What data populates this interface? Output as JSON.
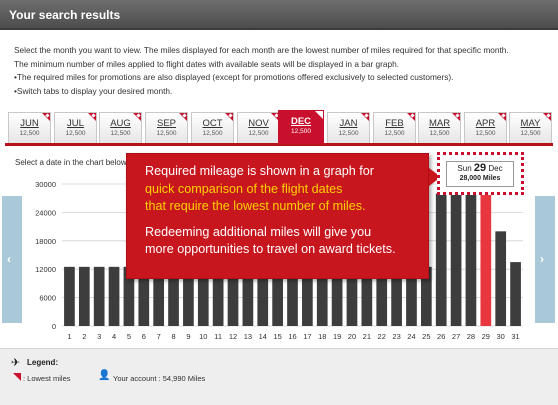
{
  "header": {
    "title": "Your search results"
  },
  "intro": {
    "lines": [
      "Select the month you want to view. The miles displayed for each month are the lowest number of miles required for that specific month.",
      "The minimum number of miles applied to flight dates with available seats will be displayed in a bar graph.",
      "•The required miles for promotions are also displayed (except for promotions offered exclusively to selected customers).",
      "•Switch tabs to display your desired month."
    ]
  },
  "tabs": [
    {
      "month": "JUN",
      "miles": "12,500",
      "active": false
    },
    {
      "month": "JUL",
      "miles": "12,500",
      "active": false
    },
    {
      "month": "AUG",
      "miles": "12,500",
      "active": false
    },
    {
      "month": "SEP",
      "miles": "12,500",
      "active": false
    },
    {
      "month": "OCT",
      "miles": "12,500",
      "active": false
    },
    {
      "month": "NOV",
      "miles": "12,500",
      "active": false
    },
    {
      "month": "DEC",
      "miles": "12,500",
      "active": true
    },
    {
      "month": "JAN",
      "miles": "12,500",
      "active": false
    },
    {
      "month": "FEB",
      "miles": "12,500",
      "active": false
    },
    {
      "month": "MAR",
      "miles": "12,500",
      "active": false
    },
    {
      "month": "APR",
      "miles": "12,500",
      "active": false
    },
    {
      "month": "MAY",
      "miles": "12,500",
      "active": false
    }
  ],
  "chart_note": "Select a date in the chart below",
  "nav": {
    "prev": "‹",
    "next": "›"
  },
  "chart_data": {
    "type": "bar",
    "categories": [
      "1",
      "2",
      "3",
      "4",
      "5",
      "6",
      "7",
      "8",
      "9",
      "10",
      "11",
      "12",
      "13",
      "14",
      "15",
      "16",
      "17",
      "18",
      "19",
      "20",
      "21",
      "22",
      "23",
      "24",
      "25",
      "26",
      "27",
      "28",
      "29",
      "30",
      "31"
    ],
    "values": [
      12500,
      12500,
      12500,
      12500,
      12500,
      12500,
      12500,
      12500,
      12500,
      12500,
      12500,
      12500,
      12500,
      12500,
      12500,
      12500,
      12500,
      12500,
      12500,
      12500,
      12500,
      12500,
      12500,
      12500,
      12500,
      28000,
      28000,
      28000,
      28000,
      20000,
      13500
    ],
    "highlight_index": 28,
    "yticks": [
      0,
      6000,
      12000,
      18000,
      24000,
      30000
    ],
    "ytick_labels": [
      "0",
      "6000",
      "12000",
      "18000",
      "24000",
      "30000"
    ],
    "ylim": [
      0,
      30000
    ],
    "grid": true,
    "colors": {
      "bar": "#3d3d3d",
      "highlight": "#e8373f",
      "grid": "#d0d0d0"
    }
  },
  "callout": {
    "line1a": "Required mileage is shown in a graph for",
    "line1b": "quick comparison of the flight dates",
    "line1c": "that require the lowest number of miles.",
    "line2a": "Redeeming additional miles will give you",
    "line2b": "more opportunities to travel on award tickets."
  },
  "tooltip": {
    "day_name": "Sun",
    "day": "29",
    "month": "Dec",
    "miles": "28,000 Miles"
  },
  "legend": {
    "title": "Legend:",
    "lowest": ": Lowest miles",
    "account": "Your account : 54,990 Miles",
    "plane_icon": "✈",
    "user_icon": "👤"
  },
  "colors": {
    "accent": "#c8102e",
    "header": "#595959"
  }
}
